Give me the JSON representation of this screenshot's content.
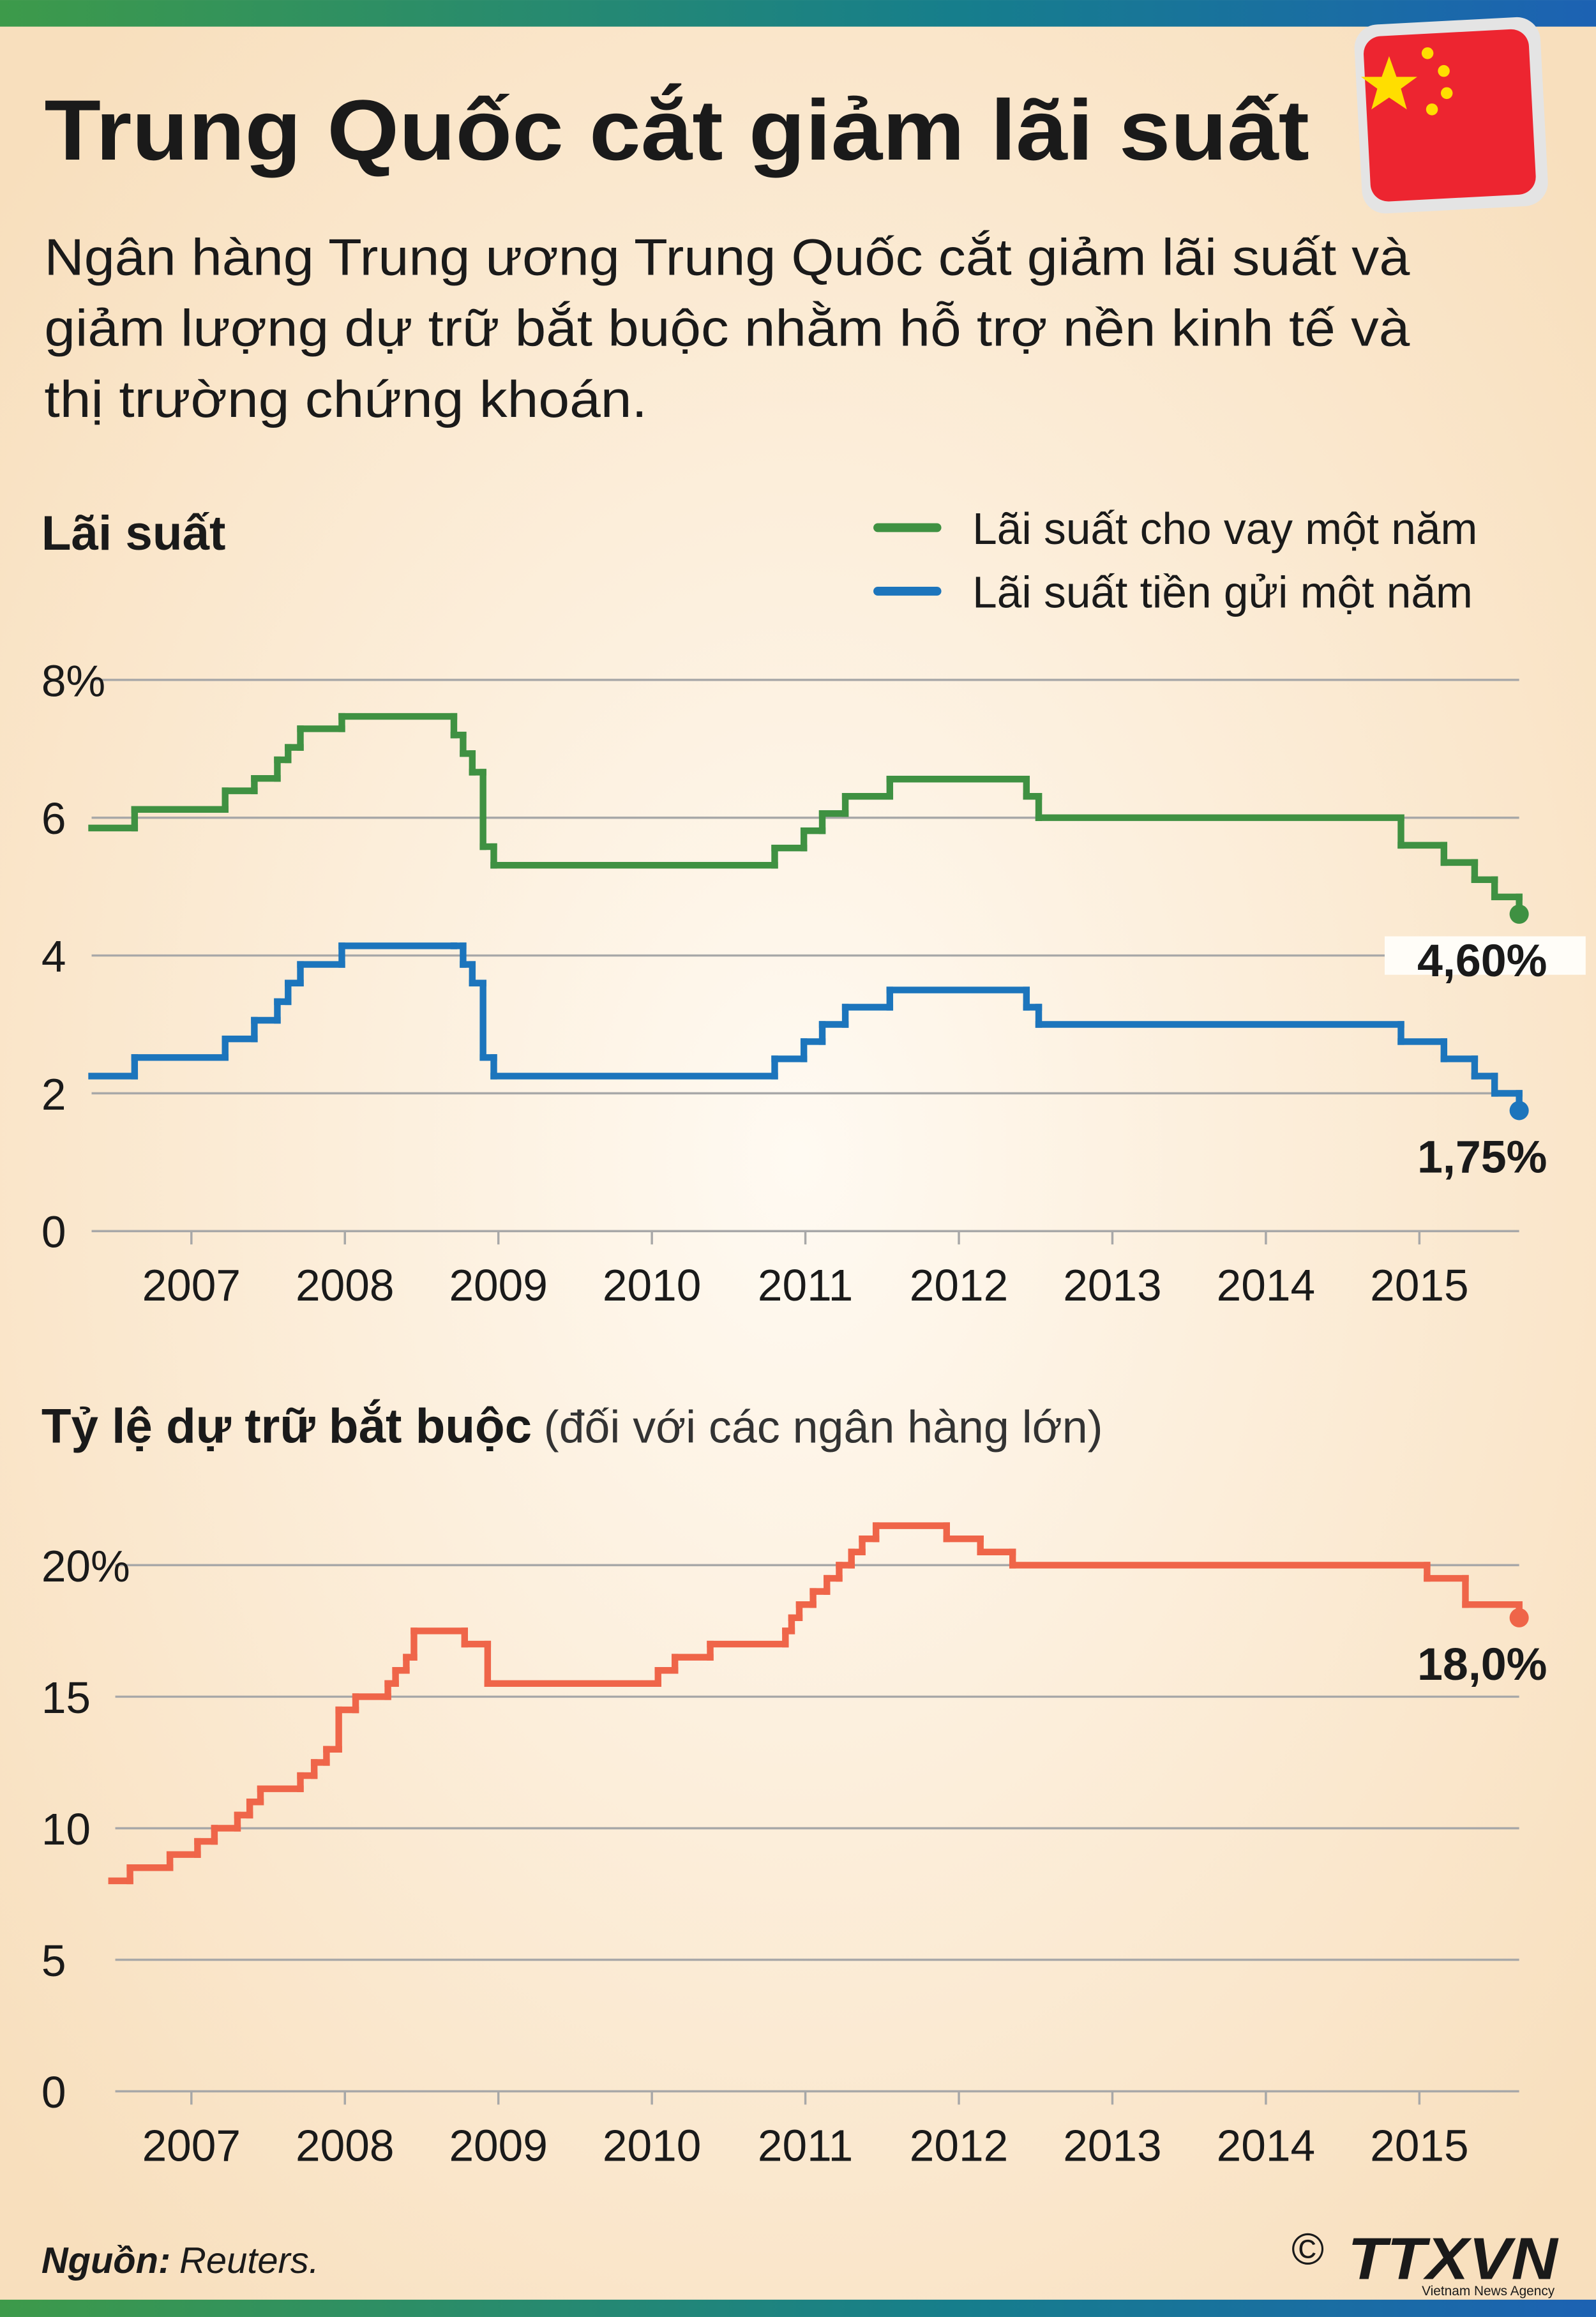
{
  "header": {
    "title": "Trung Quốc cắt giảm lãi suất",
    "description": [
      "Ngân hàng Trung ương Trung Quốc cắt giảm lãi suất và",
      "giảm lượng dự trữ bắt buộc nhằm hỗ trợ nền kinh tế và",
      "thị trường chứng khoán."
    ]
  },
  "chart_data": [
    {
      "type": "step",
      "title": "Lãi suất",
      "xlim": [
        2006.35,
        2015.65
      ],
      "xticks": [
        2007,
        2008,
        2009,
        2010,
        2011,
        2012,
        2013,
        2014,
        2015
      ],
      "ylim": [
        0,
        8
      ],
      "yticks": [
        0,
        2,
        4,
        6,
        {
          "value": 8,
          "label": "8%"
        }
      ],
      "grid": true,
      "legend": "top-right",
      "series": [
        {
          "name": "Lãi suất cho vay một năm",
          "color": "#3f9142",
          "x": [
            2006.35,
            2006.63,
            2007.22,
            2007.41,
            2007.56,
            2007.63,
            2007.71,
            2007.98,
            2008.71,
            2008.77,
            2008.83,
            2008.9,
            2008.97,
            2010.8,
            2010.99,
            2011.11,
            2011.26,
            2011.55,
            2012.44,
            2012.52,
            2014.88,
            2015.16,
            2015.36,
            2015.49,
            2015.65
          ],
          "values": [
            5.85,
            6.12,
            6.39,
            6.57,
            6.84,
            7.02,
            7.29,
            7.47,
            7.2,
            6.93,
            6.66,
            5.58,
            5.31,
            5.56,
            5.81,
            6.06,
            6.31,
            6.56,
            6.31,
            6.0,
            5.6,
            5.35,
            5.1,
            4.85,
            4.6
          ],
          "value_labels": [
            null,
            null,
            null,
            null,
            null,
            null,
            null,
            null,
            null,
            null,
            null,
            null,
            null,
            null,
            null,
            null,
            null,
            null,
            null,
            null,
            null,
            null,
            null,
            null,
            "4,60%"
          ]
        },
        {
          "name": "Lãi suất tiền gửi một năm",
          "color": "#1c75bc",
          "x": [
            2006.35,
            2006.63,
            2007.22,
            2007.41,
            2007.56,
            2007.63,
            2007.71,
            2007.98,
            2008.71,
            2008.77,
            2008.83,
            2008.9,
            2008.97,
            2010.8,
            2010.99,
            2011.11,
            2011.26,
            2011.55,
            2012.44,
            2012.52,
            2014.88,
            2015.16,
            2015.36,
            2015.49,
            2015.65
          ],
          "values": [
            2.25,
            2.52,
            2.79,
            3.06,
            3.33,
            3.6,
            3.87,
            4.14,
            4.14,
            3.87,
            3.6,
            2.52,
            2.25,
            2.5,
            2.75,
            3.0,
            3.25,
            3.5,
            3.25,
            3.0,
            2.75,
            2.5,
            2.25,
            2.0,
            1.75
          ],
          "value_labels": [
            null,
            null,
            null,
            null,
            null,
            null,
            null,
            null,
            null,
            null,
            null,
            null,
            null,
            null,
            null,
            null,
            null,
            null,
            null,
            null,
            null,
            null,
            null,
            null,
            "1,75%"
          ]
        }
      ]
    },
    {
      "type": "step",
      "title": "Tỷ lệ dự trữ bắt buộc",
      "subtitle": "(đối với các ngân hàng lớn)",
      "xlim": [
        2006.35,
        2015.65
      ],
      "xticks": [
        2007,
        2008,
        2009,
        2010,
        2011,
        2012,
        2013,
        2014,
        2015
      ],
      "ylim": [
        0,
        22
      ],
      "yticks": [
        0,
        5,
        10,
        15,
        {
          "value": 20,
          "label": "20%"
        }
      ],
      "grid": true,
      "series": [
        {
          "name": "Tỷ lệ dự trữ bắt buộc",
          "color": "#ef6549",
          "x": [
            2006.48,
            2006.6,
            2006.86,
            2007.04,
            2007.15,
            2007.3,
            2007.38,
            2007.45,
            2007.71,
            2007.8,
            2007.88,
            2007.96,
            2008.07,
            2008.28,
            2008.33,
            2008.4,
            2008.45,
            2008.78,
            2008.93,
            2010.04,
            2010.15,
            2010.38,
            2010.87,
            2010.91,
            2010.96,
            2011.05,
            2011.14,
            2011.22,
            2011.3,
            2011.37,
            2011.46,
            2011.92,
            2012.14,
            2012.35,
            2015.05,
            2015.3,
            2015.65
          ],
          "values": [
            8.0,
            8.5,
            9.0,
            9.5,
            10.0,
            10.5,
            11.0,
            11.5,
            12.0,
            12.5,
            13.0,
            14.5,
            15.0,
            15.5,
            16.0,
            16.5,
            17.5,
            17.0,
            15.5,
            16.0,
            16.5,
            17.0,
            17.5,
            18.0,
            18.5,
            19.0,
            19.5,
            20.0,
            20.5,
            21.0,
            21.5,
            21.0,
            20.5,
            20.0,
            19.5,
            18.5,
            18.0
          ],
          "value_labels": [
            null,
            null,
            null,
            null,
            null,
            null,
            null,
            null,
            null,
            null,
            null,
            null,
            null,
            null,
            null,
            null,
            null,
            null,
            null,
            null,
            null,
            null,
            null,
            null,
            null,
            null,
            null,
            null,
            null,
            null,
            null,
            null,
            null,
            null,
            null,
            null,
            "18,0%"
          ]
        }
      ]
    }
  ],
  "footer": {
    "source_label": "Nguồn:",
    "source": "Reuters.",
    "copyright": "©",
    "logo": "TTXVN",
    "logo_sub": "Vietnam News Agency"
  }
}
